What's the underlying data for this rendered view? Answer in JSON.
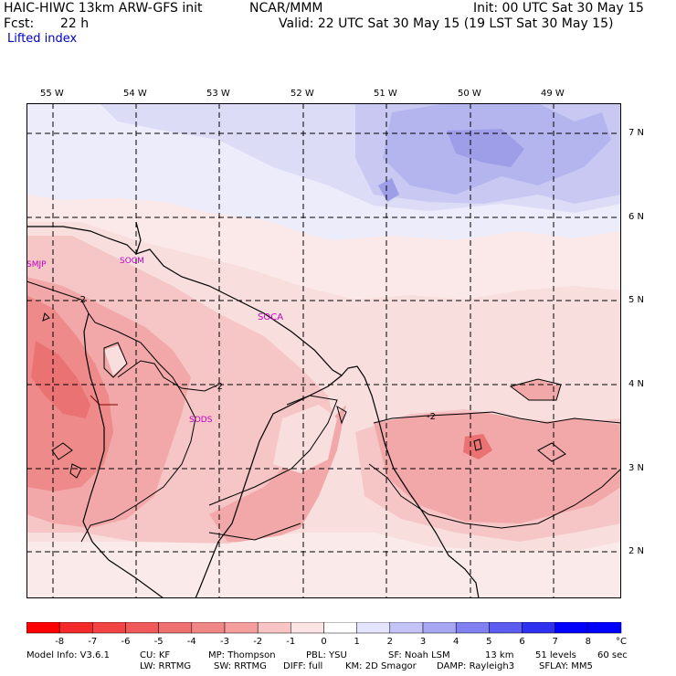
{
  "header": {
    "title_left": "HAIC-HIWC 13km ARW-GFS init",
    "org": "NCAR/MMM",
    "init": "Init: 00 UTC Sat 30 May 15",
    "fcst_label": "Fcst:",
    "fcst_value": "22 h",
    "valid": "Valid: 22 UTC Sat 30 May 15 (19 LST Sat 30 May 15)",
    "field": "Lifted index"
  },
  "map": {
    "lon_labels": [
      "55 W",
      "54 W",
      "53 W",
      "52 W",
      "51 W",
      "50 W",
      "49 W"
    ],
    "lat_labels": [
      "7 N",
      "6 N",
      "5 N",
      "4 N",
      "3 N",
      "2 N"
    ],
    "stations": [
      "SMJP",
      "SOCM",
      "SOCA",
      "SODS"
    ],
    "contour_labels": [
      "-2",
      "-2",
      "-2"
    ]
  },
  "colorbar": {
    "levels": [
      "-8",
      "-7",
      "-6",
      "-5",
      "-4",
      "-3",
      "-2",
      "-1",
      "0",
      "1",
      "2",
      "3",
      "4",
      "5",
      "6",
      "7",
      "8"
    ],
    "unit": "°C",
    "colors": [
      "#ff0000",
      "#f42a2a",
      "#f24444",
      "#f05a5a",
      "#ef7070",
      "#f08686",
      "#f49e9e",
      "#f8c4c4",
      "#fce4e4",
      "#ffffff",
      "#e4e4fc",
      "#c4c4f8",
      "#a6a6f2",
      "#8080f0",
      "#5c5cf0",
      "#3030f0",
      "#0000ff"
    ]
  },
  "footer": {
    "line1": [
      "Model Info: V3.6.1",
      "CU: KF",
      "MP: Thompson",
      "PBL: YSU",
      "SF: Noah LSM",
      "13 km",
      "51 levels",
      "60 sec"
    ],
    "line2": [
      "LW: RRTMG",
      "SW: RRTMG",
      "DIFF: full",
      "KM: 2D Smagor",
      "DAMP: Rayleigh3",
      "SFLAY: MM5"
    ]
  }
}
